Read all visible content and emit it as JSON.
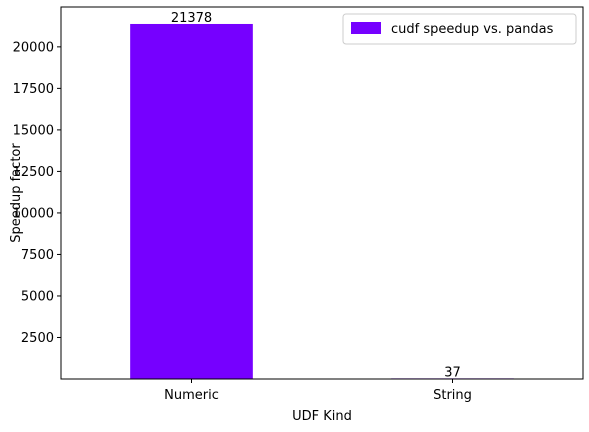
{
  "chart_data": {
    "type": "bar",
    "title": "",
    "xlabel": "UDF Kind",
    "ylabel": "Speedup factor",
    "categories": [
      "Numeric",
      "String"
    ],
    "series": [
      {
        "name": "cudf speedup vs. pandas",
        "values": [
          21378,
          37
        ],
        "color": "#7600ff"
      }
    ],
    "data_labels": [
      "21378",
      "37"
    ],
    "ylim": [
      0,
      22400
    ],
    "yticks": [
      2500,
      5000,
      7500,
      10000,
      12500,
      15000,
      17500,
      20000
    ],
    "grid": false,
    "legend_position": "top-right"
  }
}
